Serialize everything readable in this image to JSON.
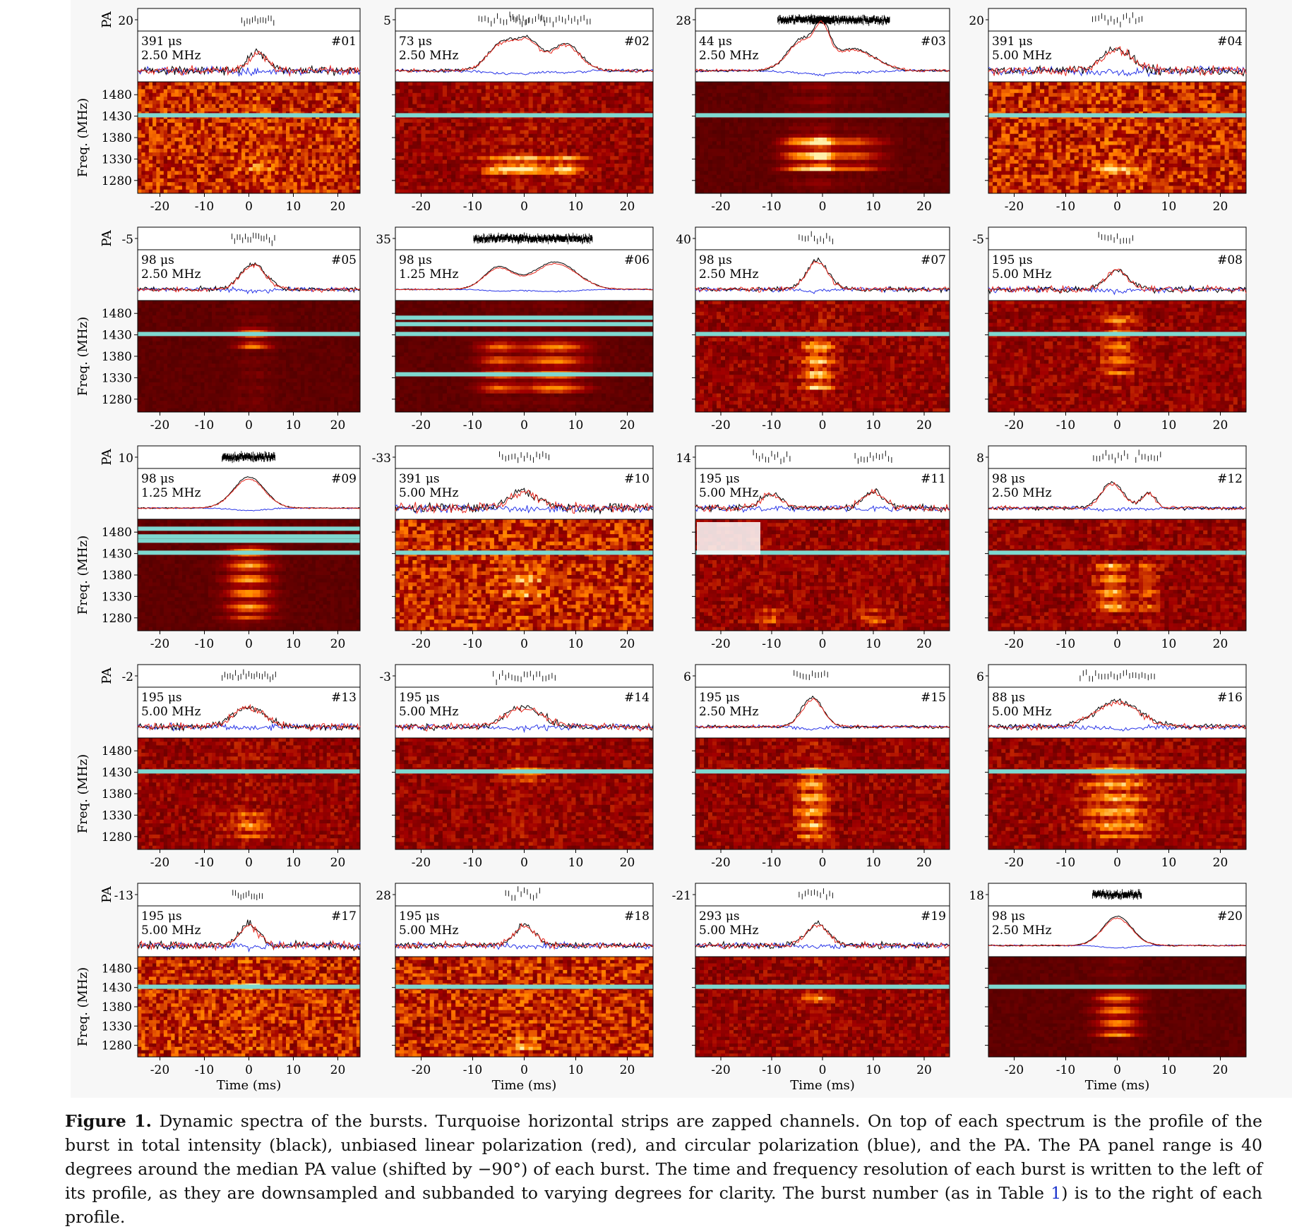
{
  "figure": {
    "pa_label": "PA",
    "freq_label": "Freq. (MHz)",
    "time_label": "Time (ms)",
    "freq_ticks": [
      "1480",
      "1430",
      "1380",
      "1330",
      "1280"
    ],
    "time_ticks": [
      "-20",
      "-10",
      "0",
      "10",
      "20"
    ],
    "colors": {
      "total_intensity": "#000000",
      "linear_polarization": "#e8281e",
      "circular_polarization": "#2a36e8",
      "zapped_channel": "#7fd8d0"
    },
    "bursts": [
      {
        "id": "#01",
        "pa": "20",
        "tres": "391 μs",
        "fres": "2.50 MHz"
      },
      {
        "id": "#02",
        "pa": "5",
        "tres": "73 μs",
        "fres": "2.50 MHz"
      },
      {
        "id": "#03",
        "pa": "28",
        "tres": "44 μs",
        "fres": "2.50 MHz"
      },
      {
        "id": "#04",
        "pa": "20",
        "tres": "391 μs",
        "fres": "5.00 MHz"
      },
      {
        "id": "#05",
        "pa": "-5",
        "tres": "98 μs",
        "fres": "2.50 MHz"
      },
      {
        "id": "#06",
        "pa": "35",
        "tres": "98 μs",
        "fres": "1.25 MHz"
      },
      {
        "id": "#07",
        "pa": "40",
        "tres": "98 μs",
        "fres": "2.50 MHz"
      },
      {
        "id": "#08",
        "pa": "-5",
        "tres": "195 μs",
        "fres": "5.00 MHz"
      },
      {
        "id": "#09",
        "pa": "10",
        "tres": "98 μs",
        "fres": "1.25 MHz"
      },
      {
        "id": "#10",
        "pa": "-33",
        "tres": "391 μs",
        "fres": "5.00 MHz"
      },
      {
        "id": "#11",
        "pa": "14",
        "tres": "195 μs",
        "fres": "5.00 MHz"
      },
      {
        "id": "#12",
        "pa": "8",
        "tres": "98 μs",
        "fres": "2.50 MHz"
      },
      {
        "id": "#13",
        "pa": "-2",
        "tres": "195 μs",
        "fres": "5.00 MHz"
      },
      {
        "id": "#14",
        "pa": "-3",
        "tres": "195 μs",
        "fres": "5.00 MHz"
      },
      {
        "id": "#15",
        "pa": "6",
        "tres": "195 μs",
        "fres": "2.50 MHz"
      },
      {
        "id": "#16",
        "pa": "6",
        "tres": "88 μs",
        "fres": "5.00 MHz"
      },
      {
        "id": "#17",
        "pa": "-13",
        "tres": "195 μs",
        "fres": "5.00 MHz"
      },
      {
        "id": "#18",
        "pa": "28",
        "tres": "195 μs",
        "fres": "5.00 MHz"
      },
      {
        "id": "#19",
        "pa": "-21",
        "tres": "293 μs",
        "fres": "5.00 MHz"
      },
      {
        "id": "#20",
        "pa": "18",
        "tres": "98 μs",
        "fres": "2.50 MHz"
      }
    ]
  },
  "caption": {
    "label": "Figure 1.",
    "text_before_ref": "Dynamic spectra of the bursts. Turquoise horizontal strips are zapped channels. On top of each spectrum is the profile of the burst in total intensity (black), unbiased linear polarization (red), and circular polarization (blue), and the PA. The PA panel range is 40 degrees around the median PA value (shifted by −90°) of each burst. The time and frequency resolution of each burst is written to the left of its profile, as they are downsampled and subbanded to varying degrees for clarity. The burst number (as in Table ",
    "ref": "1",
    "text_after_ref": ") is to the right of each profile."
  }
}
